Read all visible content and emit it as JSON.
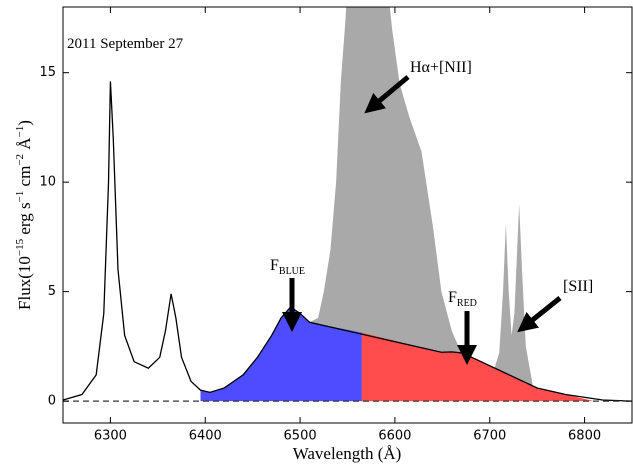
{
  "chart_data": {
    "type": "line",
    "xlabel": "Wavelength (Å)",
    "ylabel": [
      {
        "text": "Flux(10"
      },
      {
        "text": "−15",
        "sup": true
      },
      {
        "text": " erg s"
      },
      {
        "text": "−1",
        "sup": true
      },
      {
        "text": " cm"
      },
      {
        "text": "−2",
        "sup": true
      },
      {
        "text": " Å"
      },
      {
        "text": "−1",
        "sup": true
      },
      {
        "text": ")"
      }
    ],
    "xlim": [
      6250,
      6850
    ],
    "ylim": [
      -1,
      18
    ],
    "xticks": [
      6300,
      6400,
      6500,
      6600,
      6700,
      6800
    ],
    "yticks": [
      0,
      5,
      10,
      15
    ],
    "zero_line": 0,
    "annotations": [
      {
        "text": "2011 September 27"
      },
      {
        "text": "Hα+[NII]"
      },
      {
        "text": "F",
        "sub": "BLUE"
      },
      {
        "text": "F",
        "sub": "RED"
      },
      {
        "text": "[SII]"
      }
    ],
    "series": [
      {
        "kind": "area",
        "color": "#a9a9a9",
        "x": [
          6510,
          6519,
          6525,
          6532,
          6538,
          6543,
          6548,
          6551,
          6570,
          6590,
          6597,
          6605,
          6615,
          6628,
          6640,
          6649,
          6660,
          6670
        ],
        "values": [
          3.6,
          3.8,
          5.0,
          6.9,
          10.0,
          14.6,
          17.5,
          20,
          20,
          20,
          17.0,
          14.5,
          13.0,
          11.4,
          8.0,
          5.0,
          3.2,
          2.2
        ]
      },
      {
        "kind": "area",
        "color": "#a9a9a9",
        "x": [
          6695,
          6705,
          6710,
          6714,
          6717,
          6720,
          6723,
          6726,
          6729,
          6731,
          6734,
          6738,
          6745
        ],
        "values": [
          1.3,
          1.5,
          2.2,
          5.0,
          8.1,
          5.0,
          3.0,
          4.0,
          7.0,
          9.0,
          6.0,
          2.5,
          0.8
        ]
      },
      {
        "kind": "area",
        "color": "#4d4dff",
        "x": [
          6395,
          6405,
          6420,
          6440,
          6455,
          6470,
          6480,
          6490,
          6500,
          6510,
          6565
        ],
        "values": [
          0.5,
          0.4,
          0.6,
          1.2,
          2.0,
          3.0,
          3.8,
          4.3,
          4.0,
          3.6,
          3.13
        ]
      },
      {
        "kind": "area",
        "color": "#ff4d4d",
        "x": [
          6565,
          6649,
          6660,
          6670,
          6681,
          6750,
          6780,
          6810
        ],
        "values": [
          3.13,
          2.23,
          2.25,
          2.2,
          2.0,
          0.6,
          0.3,
          0.0
        ]
      },
      {
        "kind": "line",
        "color": "#000000",
        "x": [
          6250,
          6270,
          6285,
          6293,
          6298,
          6300,
          6303,
          6308,
          6315,
          6325,
          6340,
          6352,
          6358,
          6364,
          6369,
          6375,
          6385,
          6395,
          6405,
          6420,
          6440,
          6455,
          6470,
          6480,
          6490,
          6500,
          6510,
          6649,
          6660,
          6670,
          6681,
          6750,
          6780,
          6819,
          6850
        ],
        "values": [
          0.05,
          0.3,
          1.2,
          4.0,
          10.0,
          14.6,
          12.0,
          6.0,
          3.0,
          1.8,
          1.5,
          2.0,
          3.2,
          4.9,
          3.8,
          2.0,
          0.9,
          0.5,
          0.4,
          0.6,
          1.2,
          2.0,
          3.0,
          3.8,
          4.3,
          4.0,
          3.6,
          2.23,
          2.25,
          2.2,
          2.0,
          0.6,
          0.3,
          0.05,
          0.0
        ]
      }
    ]
  }
}
